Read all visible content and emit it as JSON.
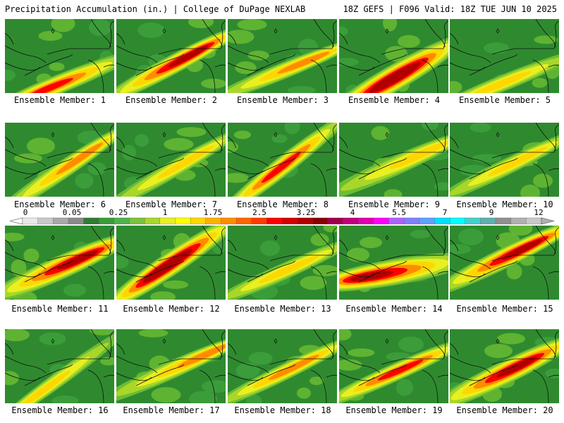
{
  "header": {
    "title": "Precipitation Accumulation (in.) | College of DuPage NEXLAB",
    "valid": "18Z GEFS | F096 Valid: 18Z TUE JUN 10 2025"
  },
  "caption_prefix": "Ensemble Member: ",
  "members": [
    {
      "number": 1,
      "caption": "Ensemble Member: 1",
      "band_y": 92,
      "angle": -22,
      "width": 24,
      "peak": 0.7,
      "core_x": 60
    },
    {
      "number": 2,
      "caption": "Ensemble Member: 2",
      "band_y": 66,
      "angle": -28,
      "width": 24,
      "peak": 0.9,
      "core_x": 110
    },
    {
      "number": 3,
      "caption": "Ensemble Member: 3",
      "band_y": 74,
      "angle": -22,
      "width": 20,
      "peak": 0.55,
      "core_x": 118
    },
    {
      "number": 4,
      "caption": "Ensemble Member: 4",
      "band_y": 84,
      "angle": -30,
      "width": 34,
      "peak": 1.0,
      "core_x": 80
    },
    {
      "number": 5,
      "caption": "Ensemble Member: 5",
      "band_y": 90,
      "angle": -22,
      "width": 20,
      "peak": 0.3,
      "core_x": 70
    },
    {
      "number": 6,
      "caption": "Ensemble Member: 6",
      "band_y": 70,
      "angle": -34,
      "width": 22,
      "peak": 0.45,
      "core_x": 120
    },
    {
      "number": 7,
      "caption": "Ensemble Member: 7",
      "band_y": 68,
      "angle": -30,
      "width": 20,
      "peak": 0.4,
      "core_x": 110
    },
    {
      "number": 8,
      "caption": "Ensemble Member: 8",
      "band_y": 62,
      "angle": -38,
      "width": 24,
      "peak": 0.7,
      "core_x": 75
    },
    {
      "number": 9,
      "caption": "Ensemble Member: 9",
      "band_y": 62,
      "angle": -24,
      "width": 24,
      "peak": 0.4,
      "core_x": 130
    },
    {
      "number": 10,
      "caption": "Ensemble Member: 10",
      "band_y": 64,
      "angle": -26,
      "width": 20,
      "peak": 0.35,
      "core_x": 105
    },
    {
      "number": 11,
      "caption": "Ensemble Member: 11",
      "band_y": 60,
      "angle": -24,
      "width": 30,
      "peak": 0.85,
      "core_x": 110
    },
    {
      "number": 12,
      "caption": "Ensemble Member: 12",
      "band_y": 54,
      "angle": -34,
      "width": 30,
      "peak": 1.0,
      "core_x": 70
    },
    {
      "number": 13,
      "caption": "Ensemble Member: 13",
      "band_y": 66,
      "angle": -24,
      "width": 20,
      "peak": 0.35,
      "core_x": 90
    },
    {
      "number": 14,
      "caption": "Ensemble Member: 14",
      "band_y": 66,
      "angle": -10,
      "width": 34,
      "peak": 0.8,
      "core_x": 40
    },
    {
      "number": 15,
      "caption": "Ensemble Member: 15",
      "band_y": 46,
      "angle": -26,
      "width": 26,
      "peak": 0.9,
      "core_x": 110
    },
    {
      "number": 16,
      "caption": "Ensemble Member: 16",
      "band_y": 70,
      "angle": -36,
      "width": 18,
      "peak": 0.3,
      "core_x": 40
    },
    {
      "number": 17,
      "caption": "Ensemble Member: 17",
      "band_y": 58,
      "angle": -24,
      "width": 22,
      "peak": 0.5,
      "core_x": 140
    },
    {
      "number": 18,
      "caption": "Ensemble Member: 18",
      "band_y": 62,
      "angle": -26,
      "width": 20,
      "peak": 0.55,
      "core_x": 100
    },
    {
      "number": 19,
      "caption": "Ensemble Member: 19",
      "band_y": 62,
      "angle": -24,
      "width": 22,
      "peak": 0.6,
      "core_x": 90
    },
    {
      "number": 20,
      "caption": "Ensemble Member: 20",
      "band_y": 62,
      "angle": -26,
      "width": 30,
      "peak": 0.75,
      "core_x": 100
    }
  ],
  "colorbar": {
    "labels": [
      "0",
      "0.05",
      "0.25",
      "1",
      "1.75",
      "2.5",
      "3.25",
      "4",
      "5.5",
      "7",
      "9",
      "12"
    ],
    "colors": [
      "#e8e8e8",
      "#c8c8c8",
      "#a8a8a8",
      "#8a8a8a",
      "#2e7d32",
      "#3a9b3a",
      "#4db34d",
      "#7cc23a",
      "#a9d62a",
      "#e8f020",
      "#ffff00",
      "#ffd700",
      "#ffb000",
      "#ff8c00",
      "#ff6400",
      "#ff3c00",
      "#ff0000",
      "#d40000",
      "#b00000",
      "#8b0000",
      "#a0004a",
      "#c0007a",
      "#e000b0",
      "#ff00ff",
      "#b060ff",
      "#8080ff",
      "#60a0ff",
      "#00e0ff",
      "#00ffff",
      "#40d0d0",
      "#60b0b0",
      "#909090",
      "#b0b0b0",
      "#c8c8c8"
    ],
    "precip_colors": [
      "#2f8a2f",
      "#3da13d",
      "#6bbd33",
      "#a9d62a",
      "#e8f020",
      "#ffd700",
      "#ff8c00",
      "#ff0000",
      "#b00000"
    ]
  }
}
